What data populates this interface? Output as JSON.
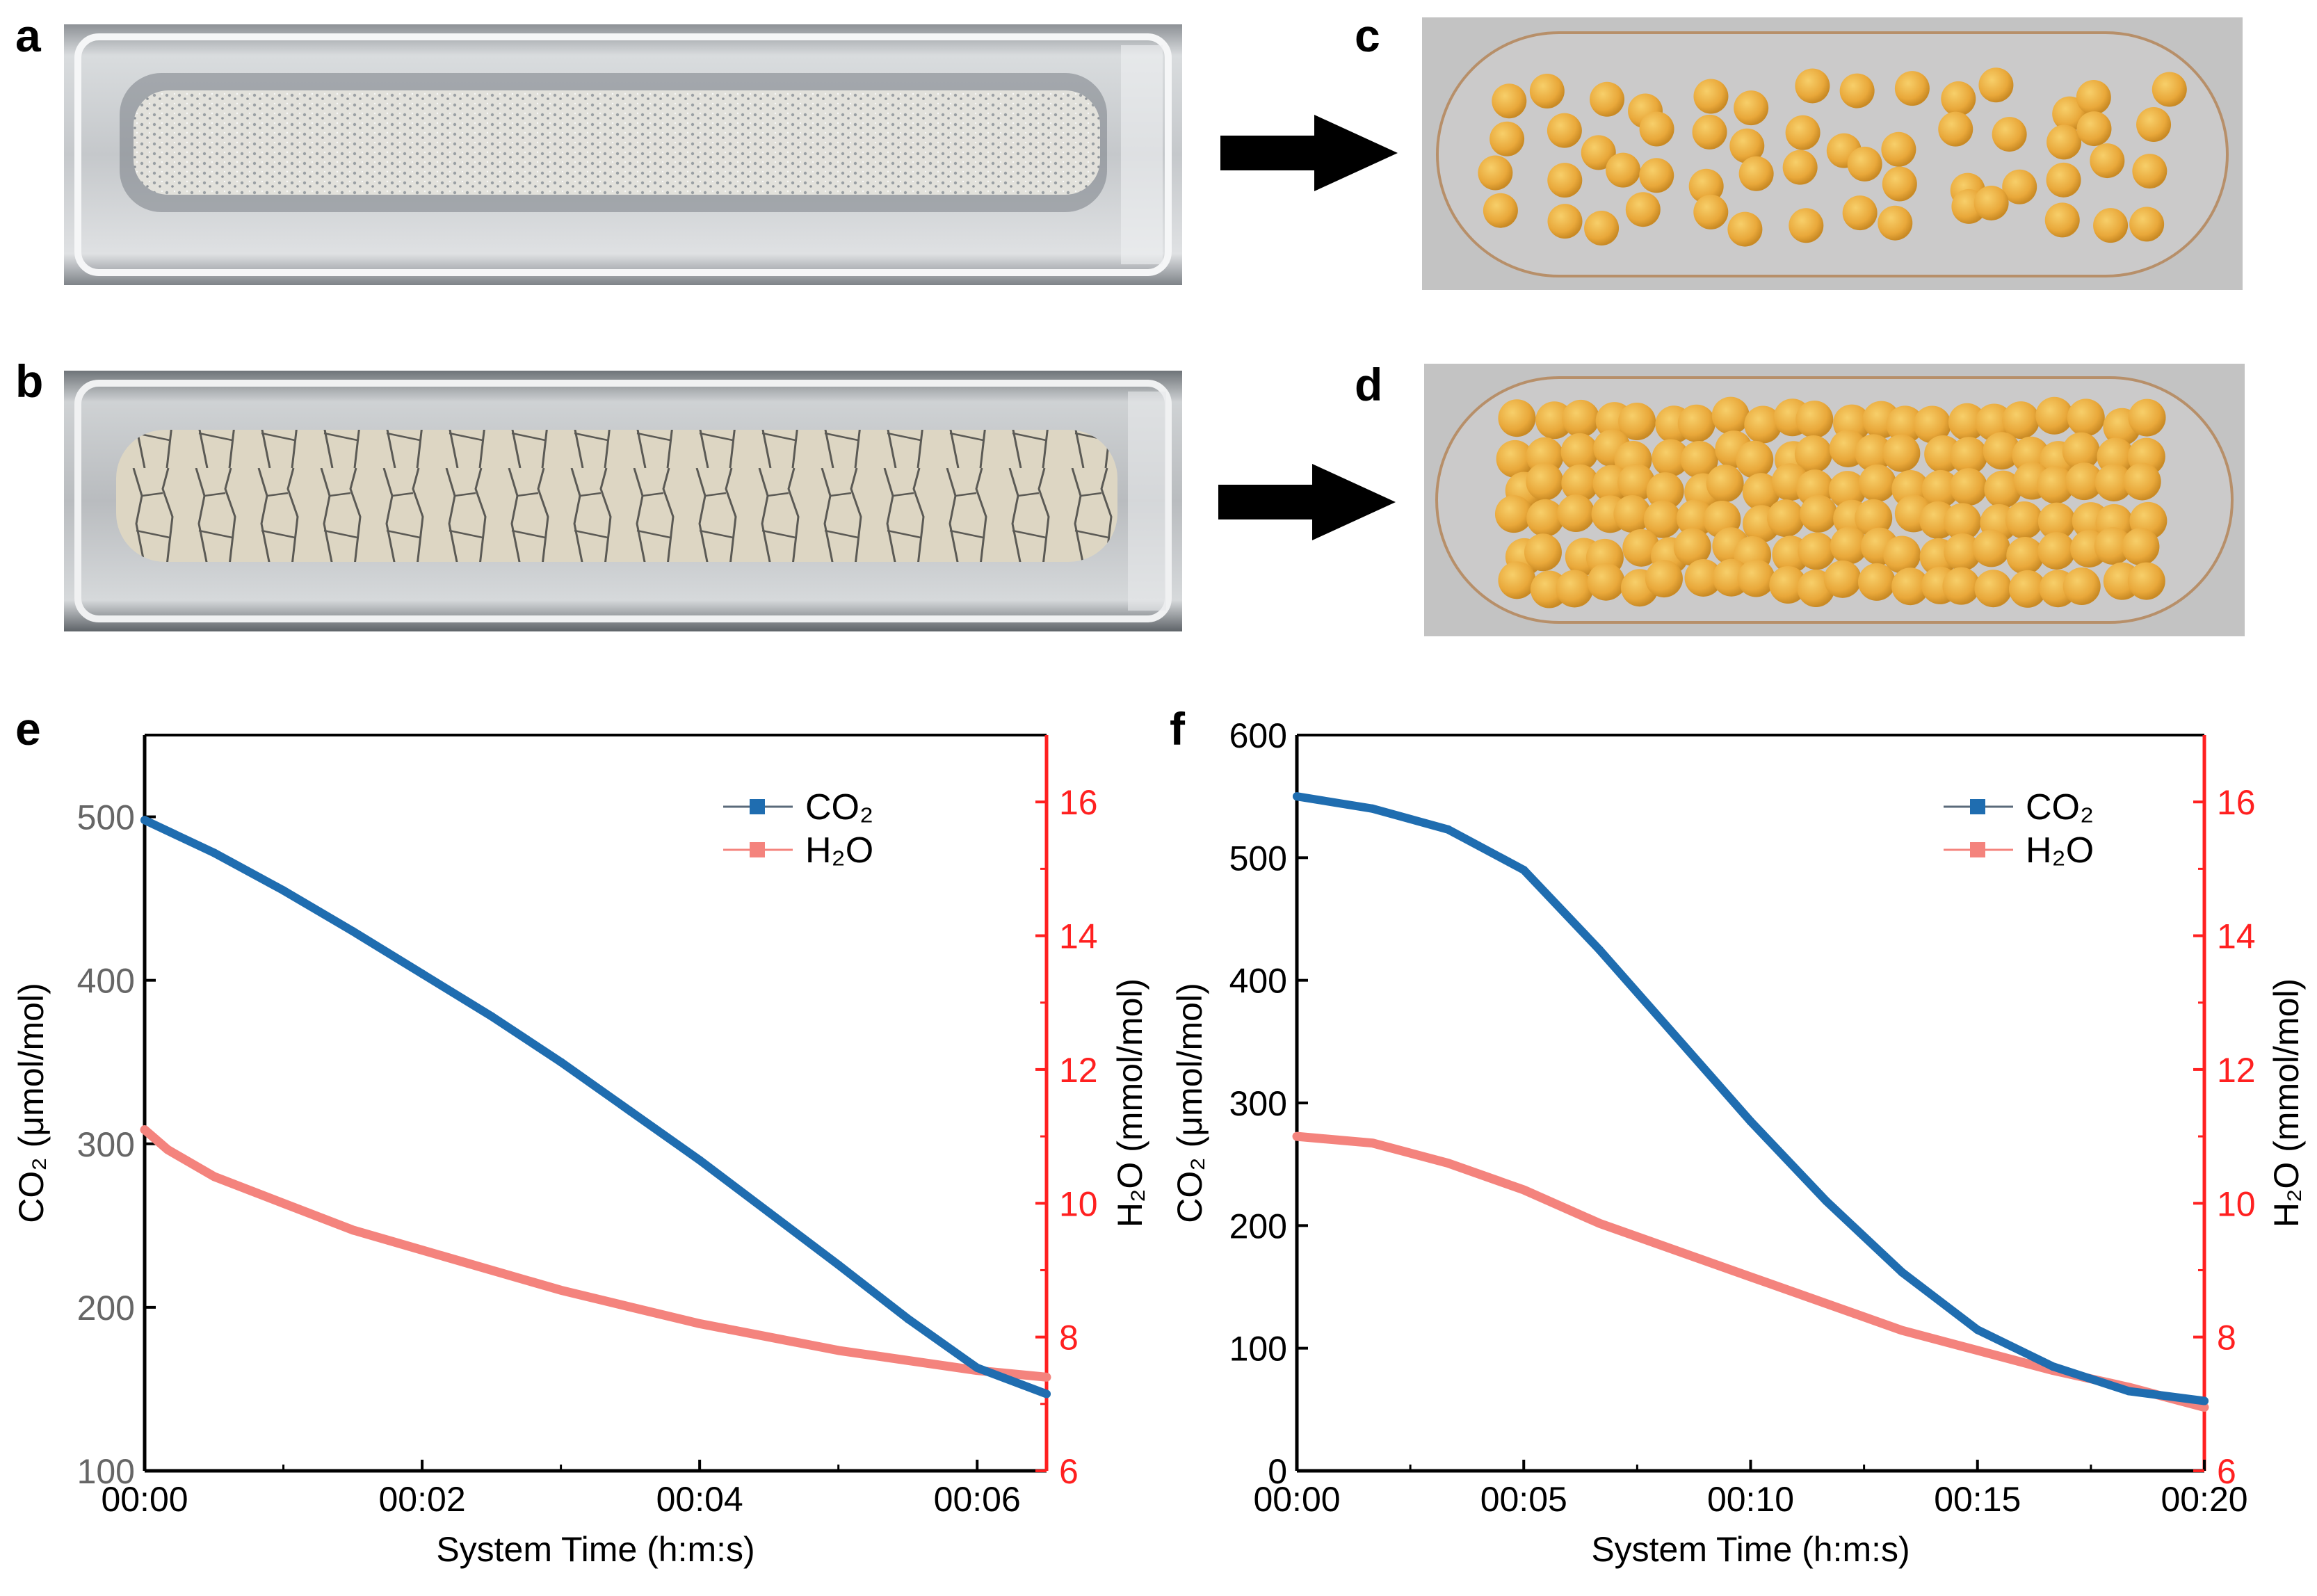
{
  "panels": {
    "a": "a",
    "b": "b",
    "c": "c",
    "d": "d",
    "e": "e",
    "f": "f"
  },
  "colors": {
    "co2": "#1f6db0",
    "h2o": "#f4837d",
    "right_axis": "#ff2020",
    "left_tick_e": "#666666",
    "axis": "#000000"
  },
  "chart_data": [
    {
      "id": "e",
      "type": "line",
      "xlabel": "System Time (h:m:s)",
      "ylabel_left": "CO₂ (μmol/mol)",
      "ylabel_right": "H₂O (mmol/mol)",
      "x_ticks": [
        "00:00",
        "00:02",
        "00:04",
        "00:06"
      ],
      "x_tick_values_s": [
        0,
        120,
        240,
        360
      ],
      "xlim_s": [
        0,
        390
      ],
      "ylim_left": [
        100,
        550
      ],
      "y_ticks_left": [
        "100",
        "200",
        "300",
        "400",
        "500"
      ],
      "y_tick_values_left": [
        100,
        200,
        300,
        400,
        500
      ],
      "ylim_right": [
        6,
        17
      ],
      "y_ticks_right": [
        "6",
        "8",
        "10",
        "12",
        "14",
        "16"
      ],
      "y_tick_values_right": [
        6,
        8,
        10,
        12,
        14,
        16
      ],
      "legend": [
        "CO₂",
        "H₂O"
      ],
      "series": [
        {
          "name": "CO₂",
          "axis": "left",
          "x": [
            0,
            30,
            60,
            90,
            120,
            150,
            180,
            210,
            240,
            270,
            300,
            330,
            360,
            390
          ],
          "y": [
            498,
            478,
            455,
            430,
            404,
            378,
            350,
            320,
            290,
            258,
            226,
            193,
            163,
            147
          ]
        },
        {
          "name": "H₂O",
          "axis": "right",
          "x": [
            0,
            10,
            30,
            60,
            90,
            120,
            150,
            180,
            210,
            240,
            270,
            300,
            330,
            360,
            390
          ],
          "y": [
            11.1,
            10.8,
            10.4,
            10.0,
            9.6,
            9.3,
            9.0,
            8.7,
            8.45,
            8.2,
            8.0,
            7.8,
            7.65,
            7.5,
            7.4
          ]
        }
      ]
    },
    {
      "id": "f",
      "type": "line",
      "xlabel": "System Time (h:m:s)",
      "ylabel_left": "CO₂ (μmol/mol)",
      "ylabel_right": "H₂O (mmol/mol)",
      "x_ticks": [
        "00:00",
        "00:05",
        "00:10",
        "00:15",
        "00:20"
      ],
      "x_tick_values_s": [
        0,
        300,
        600,
        900,
        1200
      ],
      "xlim_s": [
        0,
        1200
      ],
      "ylim_left": [
        0,
        600
      ],
      "y_ticks_left": [
        "0",
        "100",
        "200",
        "300",
        "400",
        "500",
        "600"
      ],
      "y_tick_values_left": [
        0,
        100,
        200,
        300,
        400,
        500,
        600
      ],
      "ylim_right": [
        6,
        17
      ],
      "y_ticks_right": [
        "6",
        "8",
        "10",
        "12",
        "14",
        "16"
      ],
      "y_tick_values_right": [
        6,
        8,
        10,
        12,
        14,
        16
      ],
      "legend": [
        "CO₂",
        "H₂O"
      ],
      "series": [
        {
          "name": "CO₂",
          "axis": "left",
          "x": [
            0,
            100,
            200,
            300,
            400,
            500,
            600,
            700,
            800,
            900,
            1000,
            1100,
            1200
          ],
          "y": [
            550,
            540,
            523,
            490,
            425,
            355,
            285,
            220,
            162,
            115,
            85,
            65,
            57
          ]
        },
        {
          "name": "H₂O",
          "axis": "right",
          "x": [
            0,
            100,
            200,
            300,
            400,
            500,
            600,
            700,
            800,
            900,
            1000,
            1100,
            1200
          ],
          "y": [
            11.0,
            10.9,
            10.6,
            10.2,
            9.7,
            9.3,
            8.9,
            8.5,
            8.1,
            7.8,
            7.5,
            7.25,
            6.95
          ]
        }
      ]
    }
  ]
}
